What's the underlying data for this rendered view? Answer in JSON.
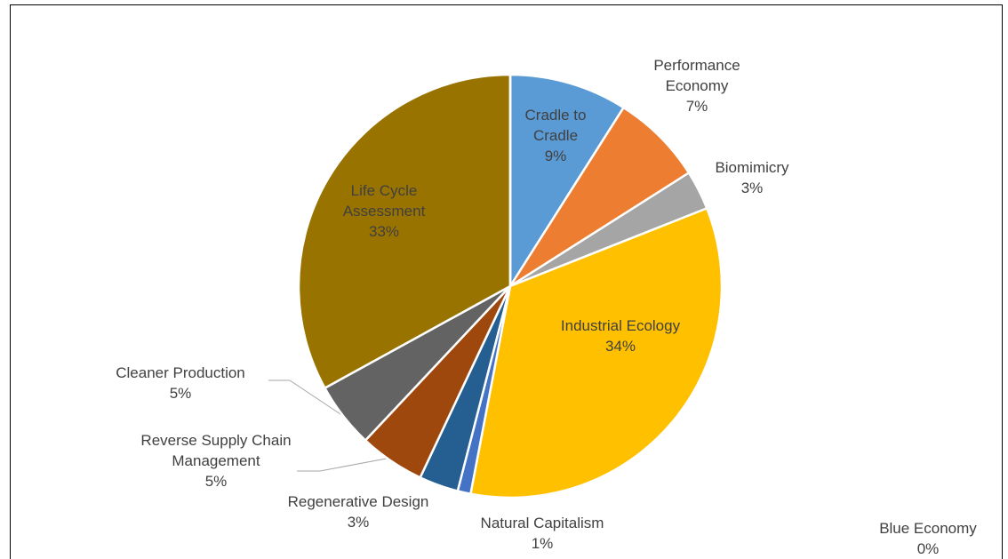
{
  "chart_data": {
    "type": "pie",
    "categories": [
      "Cradle to Cradle",
      "Performance Economy",
      "Biomimicry",
      "Industrial Ecology",
      "Natural Capitalism",
      "Regenerative Design",
      "Reverse Supply Chain Management",
      "Cleaner Production",
      "Life Cycle Assessment",
      "Blue Economy"
    ],
    "values": [
      9,
      7,
      3,
      34,
      1,
      3,
      5,
      5,
      33,
      0
    ],
    "value_labels": [
      "9%",
      "7%",
      "3%",
      "34%",
      "1%",
      "3%",
      "5%",
      "5%",
      "33%",
      "0%"
    ],
    "colors": [
      "#5b9bd5",
      "#ed7d31",
      "#a5a5a5",
      "#ffc000",
      "#4472c4",
      "#255e91",
      "#9e480e",
      "#636363",
      "#997300",
      "#264478"
    ]
  }
}
